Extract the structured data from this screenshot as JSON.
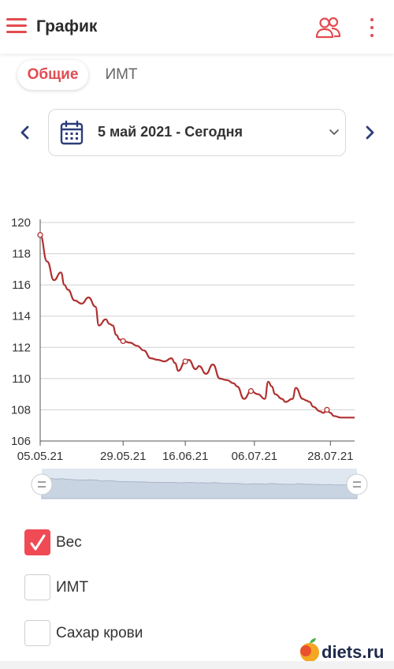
{
  "header": {
    "title": "График",
    "menu_icon": "hamburger-icon",
    "people_icon": "people-icon",
    "more_icon": "more-vertical-icon",
    "accent_color": "#e24b50"
  },
  "tabs": [
    {
      "label": "Общие",
      "active": true
    },
    {
      "label": "ИМТ",
      "active": false
    }
  ],
  "date_selector": {
    "value": "5 май 2021 - Сегодня",
    "prev_icon": "chevron-left-icon",
    "next_icon": "chevron-right-icon",
    "calendar_icon": "calendar-icon",
    "dropdown_icon": "chevron-down-icon"
  },
  "chart_data": {
    "type": "line",
    "title": "",
    "xlabel": "",
    "ylabel": "",
    "ylim": [
      106,
      120
    ],
    "y_ticks": [
      "120",
      "118",
      "116",
      "114",
      "112",
      "110",
      "108",
      "106"
    ],
    "x_ticks": [
      "05.05.21",
      "29.05.21",
      "16.06.21",
      "06.07.21",
      "28.07.21"
    ],
    "grid": true,
    "series": [
      {
        "color": "#b03030",
        "x": [
          "05.05.21",
          "07.05.21",
          "09.05.21",
          "11.05.21",
          "12.05.21",
          "13.05.21",
          "15.05.21",
          "17.05.21",
          "19.05.21",
          "21.05.21",
          "22.05.21",
          "24.05.21",
          "25.05.21",
          "26.05.21",
          "27.05.21",
          "28.05.21",
          "29.05.21",
          "31.05.21",
          "02.06.21",
          "04.06.21",
          "06.06.21",
          "08.06.21",
          "10.06.21",
          "12.06.21",
          "13.06.21",
          "14.06.21",
          "16.06.21",
          "17.06.21",
          "19.06.21",
          "20.06.21",
          "22.06.21",
          "24.06.21",
          "26.06.21",
          "28.06.21",
          "30.06.21",
          "01.07.21",
          "03.07.21",
          "05.07.21",
          "07.07.21",
          "09.07.21",
          "10.07.21",
          "11.07.21",
          "12.07.21",
          "14.07.21",
          "15.07.21",
          "17.07.21",
          "18.07.21",
          "20.07.21",
          "21.07.21",
          "22.07.21",
          "23.07.21",
          "25.07.21",
          "26.07.21",
          "27.07.21",
          "28.07.21",
          "29.07.21",
          "31.07.21",
          "01.08.21",
          "02.08.21",
          "03.08.21",
          "04.08.21"
        ],
        "values": [
          119.2,
          117.5,
          116.3,
          116.8,
          116.0,
          115.7,
          115.0,
          114.8,
          115.2,
          114.6,
          113.4,
          113.8,
          113.5,
          113.4,
          112.8,
          112.5,
          112.4,
          112.3,
          112.1,
          111.8,
          111.3,
          111.2,
          111.1,
          111.3,
          111.0,
          110.5,
          111.1,
          111.2,
          110.6,
          110.8,
          110.3,
          110.9,
          110.0,
          109.9,
          109.7,
          109.5,
          108.7,
          109.2,
          109.0,
          108.7,
          109.8,
          109.5,
          109.0,
          108.7,
          108.5,
          108.7,
          109.4,
          108.7,
          108.6,
          108.5,
          108.2,
          107.9,
          107.8,
          108.0,
          107.8,
          107.6,
          107.5,
          107.5,
          107.5,
          107.5,
          107.5
        ],
        "markers_at": [
          "05.05.21",
          "29.05.21",
          "16.06.21",
          "05.07.21",
          "27.07.21"
        ]
      }
    ],
    "x_range": [
      "05.05.21",
      "04.08.21"
    ]
  },
  "navigator": {
    "left_handle_icon": "handle-icon",
    "right_handle_icon": "handle-icon"
  },
  "checkboxes": [
    {
      "label": "Вес",
      "checked": true
    },
    {
      "label": "ИМТ",
      "checked": false
    },
    {
      "label": "Сахар крови",
      "checked": false
    }
  ],
  "watermark": {
    "text": "diets.ru",
    "logo_icon": "apple-logo-icon"
  }
}
